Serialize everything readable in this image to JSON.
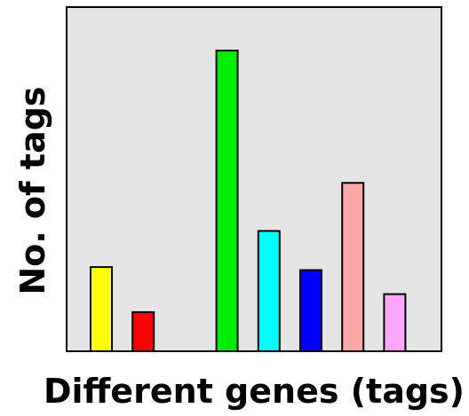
{
  "chart_data": {
    "type": "bar",
    "xlabel": "Different genes (tags)",
    "ylabel": "No. of tags",
    "ylim": [
      0,
      100
    ],
    "grid": false,
    "x_ticks_shown": false,
    "y_ticks_shown": false,
    "plot_background": "#e5e5e5",
    "bars": [
      {
        "x": 1,
        "value": 28,
        "color": "#ffff00"
      },
      {
        "x": 2,
        "value": 13,
        "color": "#ff0000"
      },
      {
        "x": 4,
        "value": 100,
        "color": "#00ee00"
      },
      {
        "x": 5,
        "value": 40,
        "color": "#00ffff"
      },
      {
        "x": 6,
        "value": 27,
        "color": "#0000ff"
      },
      {
        "x": 7,
        "value": 56,
        "color": "#ffa6a6"
      },
      {
        "x": 8,
        "value": 19,
        "color": "#ffa6ff"
      }
    ]
  }
}
